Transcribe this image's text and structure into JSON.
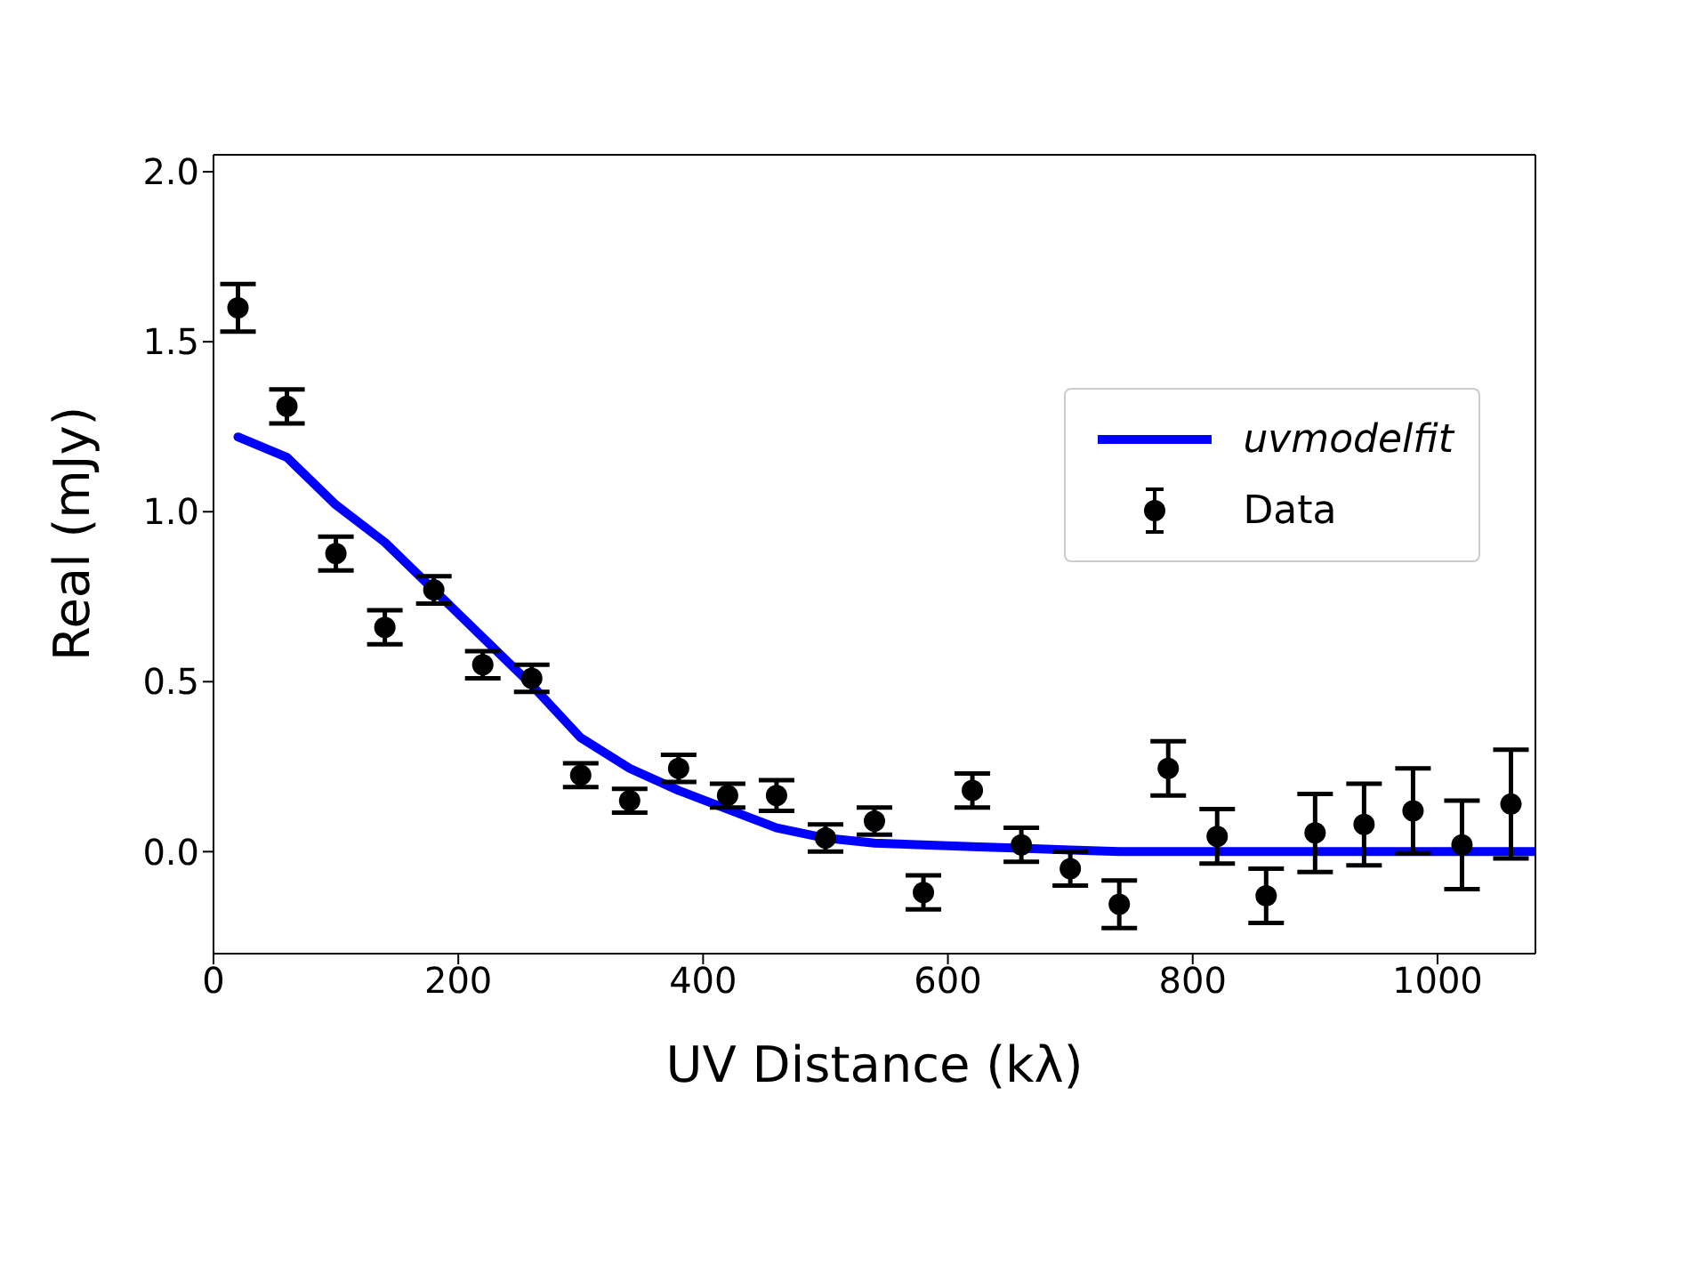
{
  "chart_data": {
    "type": "scatter",
    "xlabel": "UV Distance (kλ)",
    "ylabel": "Real (mJy)",
    "xlim": [
      0,
      1080
    ],
    "ylim": [
      -0.3,
      2.05
    ],
    "xticks": [
      0,
      200,
      400,
      600,
      800,
      1000
    ],
    "yticks": [
      {
        "value": 0,
        "label": "0.0"
      },
      {
        "value": 0.5,
        "label": "0.5"
      },
      {
        "value": 1,
        "label": "1.0"
      },
      {
        "value": 1.5,
        "label": "1.5"
      },
      {
        "value": 2,
        "label": "2.0"
      }
    ],
    "grid": false,
    "legend": "right",
    "series": [
      {
        "name": "uvmodelfit",
        "type": "line",
        "color": "#0000ff",
        "marker": "none",
        "x": [
          20,
          60,
          100,
          140,
          180,
          220,
          260,
          300,
          340,
          380,
          420,
          460,
          500,
          540,
          580,
          620,
          660,
          700,
          740,
          780,
          820,
          860,
          900,
          940,
          980,
          1020,
          1080
        ],
        "values": [
          1.22,
          1.16,
          1.02,
          0.91,
          0.77,
          0.63,
          0.49,
          0.335,
          0.245,
          0.18,
          0.125,
          0.07,
          0.04,
          0.025,
          0.02,
          0.015,
          0.01,
          0.005,
          0,
          0,
          0,
          0,
          0,
          0,
          0,
          0,
          0
        ]
      },
      {
        "name": "Data",
        "color": "#000000",
        "marker": "circle",
        "x": [
          20,
          60,
          100,
          140,
          180,
          220,
          260,
          300,
          340,
          380,
          420,
          460,
          500,
          540,
          580,
          620,
          660,
          700,
          740,
          780,
          820,
          860,
          900,
          940,
          980,
          1020,
          1060
        ],
        "values": [
          1.6,
          1.31,
          0.877,
          0.66,
          0.77,
          0.55,
          0.51,
          0.225,
          0.15,
          0.245,
          0.165,
          0.165,
          0.04,
          0.09,
          -0.12,
          0.18,
          0.02,
          -0.05,
          -0.155,
          0.245,
          0.045,
          -0.13,
          0.055,
          0.08,
          0.12,
          0.02,
          0.14
        ],
        "errors": [
          0.07,
          0.05,
          0.05,
          0.05,
          0.04,
          0.04,
          0.04,
          0.035,
          0.035,
          0.04,
          0.035,
          0.045,
          0.04,
          0.04,
          0.05,
          0.05,
          0.05,
          0.05,
          0.07,
          0.08,
          0.08,
          0.08,
          0.115,
          0.12,
          0.125,
          0.13,
          0.16
        ]
      }
    ]
  }
}
